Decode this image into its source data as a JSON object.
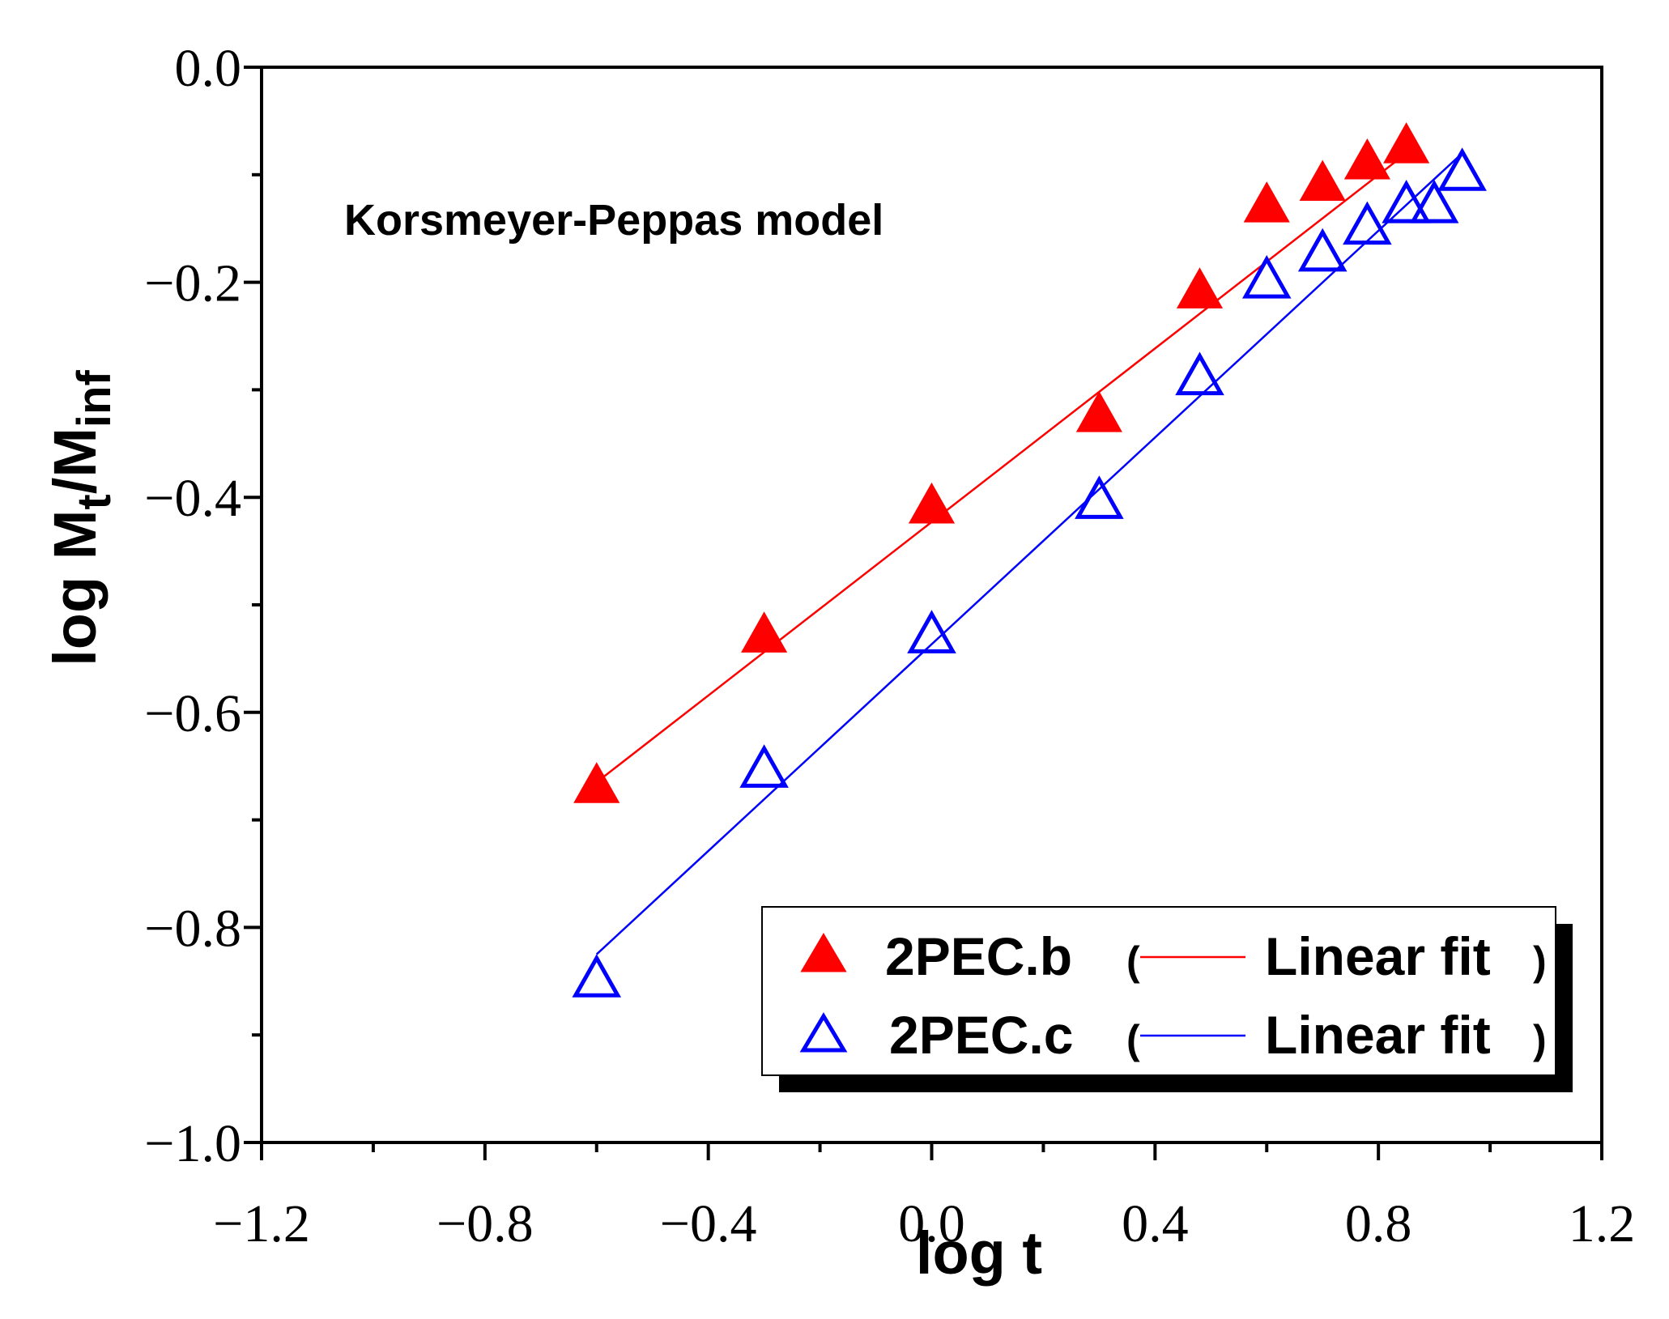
{
  "chart_data": {
    "type": "scatter",
    "title": "",
    "annotation": "Korsmeyer-Peppas model",
    "xlabel": "log t",
    "ylabel": {
      "prefix": "log M",
      "sub1": "t",
      "mid": "/M",
      "sub2": "inf"
    },
    "xlim": [
      -1.2,
      1.2
    ],
    "ylim": [
      -1.0,
      0.0
    ],
    "x_major_ticks": [
      -1.2,
      -0.8,
      -0.4,
      0.0,
      0.4,
      0.8,
      1.2
    ],
    "x_tick_labels": [
      "−1.2",
      "−0.8",
      "−0.4",
      "0.0",
      "0.4",
      "0.8",
      "1.2"
    ],
    "x_minor_ticks": [
      -1.0,
      -0.6,
      -0.2,
      0.2,
      0.6,
      1.0
    ],
    "y_major_ticks": [
      0.0,
      -0.2,
      -0.4,
      -0.6,
      -0.8,
      -1.0
    ],
    "y_tick_labels": [
      "0.0",
      "−0.2",
      "−0.4",
      "−0.6",
      "−0.8",
      "−1.0"
    ],
    "y_minor_ticks": [
      -0.1,
      -0.3,
      -0.5,
      -0.7,
      -0.9
    ],
    "grid": false,
    "legend_position": "bottom-right",
    "series": [
      {
        "name": "2PEC.b",
        "marker": "filled-triangle",
        "color": "#ff0000",
        "x": [
          -0.6,
          -0.3,
          0.0,
          0.3,
          0.48,
          0.6,
          0.7,
          0.78,
          0.85
        ],
        "y": [
          -0.67,
          -0.53,
          -0.41,
          -0.325,
          -0.21,
          -0.13,
          -0.11,
          -0.09,
          -0.075
        ],
        "fit": {
          "label": "Linear fit",
          "x": [
            -0.6,
            0.85
          ],
          "y": [
            -0.665,
            -0.08
          ]
        }
      },
      {
        "name": "2PEC.c",
        "marker": "open-triangle",
        "color": "#0000ff",
        "x": [
          -0.6,
          -0.3,
          0.0,
          0.3,
          0.48,
          0.6,
          0.7,
          0.78,
          0.85,
          0.9,
          0.95
        ],
        "y": [
          -0.85,
          -0.655,
          -0.53,
          -0.405,
          -0.29,
          -0.2,
          -0.175,
          -0.15,
          -0.13,
          -0.13,
          -0.1
        ],
        "fit": {
          "label": "Linear fit",
          "x": [
            -0.6,
            0.95
          ],
          "y": [
            -0.825,
            -0.08
          ]
        }
      }
    ]
  }
}
